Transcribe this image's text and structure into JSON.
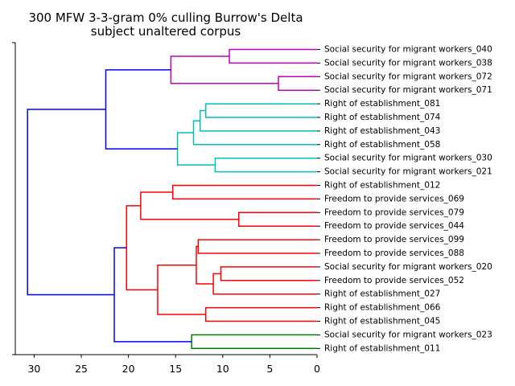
{
  "chart_data": {
    "type": "dendrogram",
    "title": "300 MFW 3-3-gram 0% culling Burrow's Delta",
    "subtitle": "subject unaltered corpus",
    "xlim": [
      32,
      0
    ],
    "x_ticks": [
      30,
      25,
      20,
      15,
      10,
      5,
      0
    ],
    "leaves": [
      "Social security for migrant workers_040",
      "Social security for migrant workers_038",
      "Social security for migrant workers_072",
      "Social security for migrant workers_071",
      "Right of establishment_081",
      "Right of establishment_074",
      "Right of establishment_043",
      "Right of establishment_058",
      "Social security for migrant workers_030",
      "Social security for migrant workers_021",
      "Right of establishment_012",
      "Freedom to provide services_069",
      "Freedom to provide services_079",
      "Freedom to provide services_044",
      "Freedom to provide services_099",
      "Freedom to provide services_088",
      "Social security for migrant workers_020",
      "Freedom to provide services_052",
      "Right of establishment_027",
      "Right of establishment_066",
      "Right of establishment_045",
      "Social security for migrant workers_023",
      "Right of establishment_011"
    ],
    "colors": {
      "magenta": "#bf00bf",
      "cyan": "#00bfbf",
      "red": "#ff0000",
      "green": "#008000",
      "blue": "#0000ff"
    },
    "merges": [
      {
        "a": "L0",
        "b": "L1",
        "dist": 9.3,
        "color": "magenta"
      },
      {
        "a": "L2",
        "b": "L3",
        "dist": 4.1,
        "color": "magenta"
      },
      {
        "a": "M0",
        "b": "M1",
        "dist": 15.5,
        "color": "magenta"
      },
      {
        "a": "L4",
        "b": "L5",
        "dist": 11.8,
        "color": "cyan"
      },
      {
        "a": "M3",
        "b": "L6",
        "dist": 12.4,
        "color": "cyan"
      },
      {
        "a": "M4",
        "b": "L7",
        "dist": 13.1,
        "color": "cyan"
      },
      {
        "a": "L8",
        "b": "L9",
        "dist": 10.8,
        "color": "cyan"
      },
      {
        "a": "M5",
        "b": "M6",
        "dist": 14.8,
        "color": "cyan"
      },
      {
        "a": "M2",
        "b": "M7",
        "dist": 22.4,
        "color": "blue"
      },
      {
        "a": "L10",
        "b": "L11",
        "dist": 15.3,
        "color": "red"
      },
      {
        "a": "L12",
        "b": "L13",
        "dist": 8.3,
        "color": "red"
      },
      {
        "a": "M9",
        "b": "M10",
        "dist": 18.7,
        "color": "red"
      },
      {
        "a": "L14",
        "b": "L15",
        "dist": 12.6,
        "color": "red"
      },
      {
        "a": "L16",
        "b": "L17",
        "dist": 10.2,
        "color": "red"
      },
      {
        "a": "M13",
        "b": "L18",
        "dist": 11.0,
        "color": "red"
      },
      {
        "a": "M12",
        "b": "M14",
        "dist": 12.8,
        "color": "red"
      },
      {
        "a": "L19",
        "b": "L20",
        "dist": 11.8,
        "color": "red"
      },
      {
        "a": "M15",
        "b": "M16",
        "dist": 16.9,
        "color": "red"
      },
      {
        "a": "M11",
        "b": "M17",
        "dist": 20.2,
        "color": "red"
      },
      {
        "a": "L21",
        "b": "L22",
        "dist": 13.3,
        "color": "green"
      },
      {
        "a": "M18",
        "b": "M19",
        "dist": 21.5,
        "color": "blue"
      },
      {
        "a": "M8",
        "b": "M20",
        "dist": 30.7,
        "color": "blue"
      }
    ]
  }
}
